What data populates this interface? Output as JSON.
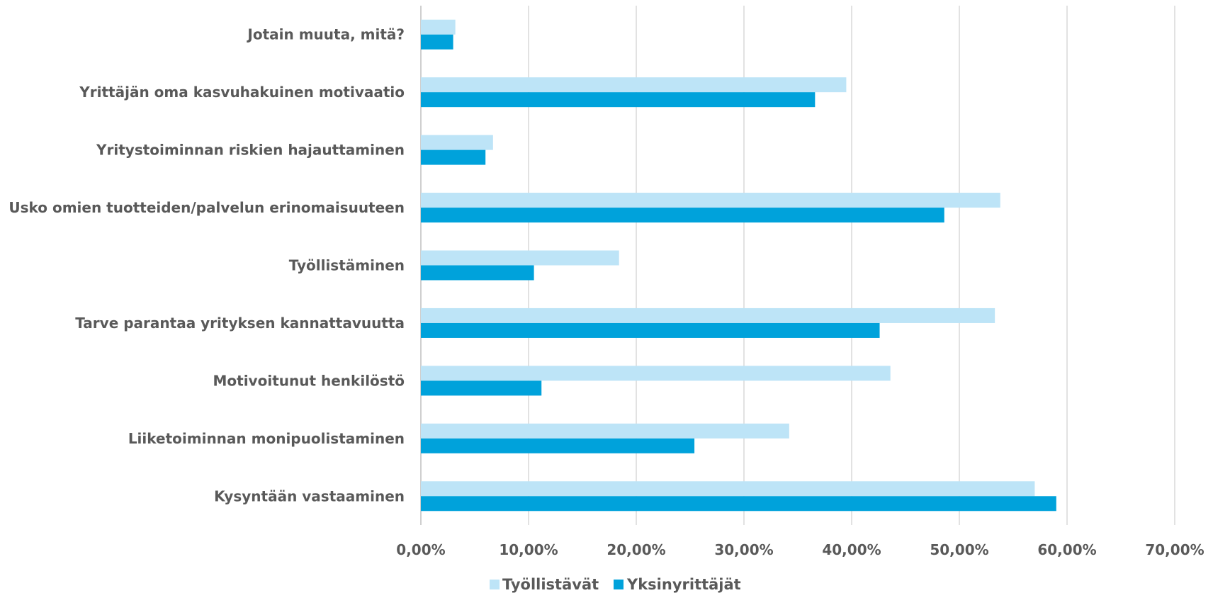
{
  "chart_data": {
    "type": "bar",
    "orientation": "horizontal",
    "categories": [
      "Kysyntään vastaaminen",
      "Liiketoiminnan monipuolistaminen",
      "Motivoitunut henkilöstö",
      "Tarve parantaa yrityksen kannattavuutta",
      "Työllistäminen",
      "Usko omien tuotteiden/palvelun erinomaisuuteen",
      "Yritystoiminnan riskien hajauttaminen",
      "Yrittäjän oma kasvuhakuinen motivaatio",
      "Jotain muuta, mitä?"
    ],
    "series": [
      {
        "name": "Työllistävät",
        "color": "#bde4f7",
        "values": [
          57.0,
          34.2,
          43.6,
          53.3,
          18.4,
          53.8,
          6.7,
          39.5,
          3.2
        ]
      },
      {
        "name": "Yksinyrittäjät",
        "color": "#00a2db",
        "values": [
          59.0,
          25.4,
          11.2,
          42.6,
          10.5,
          48.6,
          6.0,
          36.6,
          3.0
        ]
      }
    ],
    "x_ticks": [
      "0,00%",
      "10,00%",
      "20,00%",
      "30,00%",
      "40,00%",
      "50,00%",
      "60,00%",
      "70,00%"
    ],
    "xlim": [
      0,
      70
    ],
    "grid": "vertical",
    "legend_position": "bottom"
  }
}
